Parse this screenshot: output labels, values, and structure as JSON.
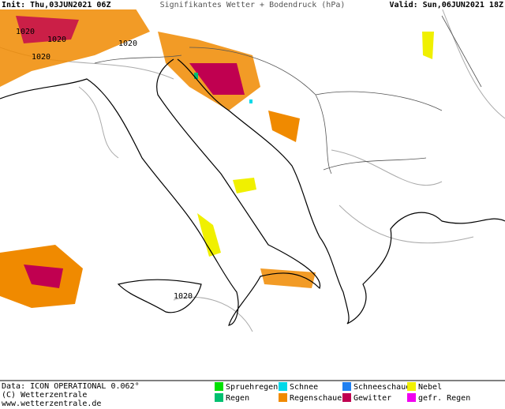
{
  "header": {
    "init": "Init: Thu,03JUN2021 06Z",
    "title": "Signifikantes Wetter +  Bodendruck (hPa)",
    "valid": "Valid: Sun,06JUN2021 18Z"
  },
  "isobar_labels": [
    "1020",
    "1020",
    "1020",
    "1020",
    "1020"
  ],
  "footer": {
    "lines": [
      "Data: ICON OPERATIONAL 0.062°",
      "(C) Wetterzentrale",
      "www.wetterzentrale.de"
    ]
  },
  "legend": [
    {
      "label": "Spruehregen",
      "color": "#00e000"
    },
    {
      "label": "Regen",
      "color": "#00c070"
    },
    {
      "label": "Schnee",
      "color": "#00d8e8"
    },
    {
      "label": "Regenschauer",
      "color": "#f08a00"
    },
    {
      "label": "Schneeschauer",
      "color": "#2080f0"
    },
    {
      "label": "Gewitter",
      "color": "#c00050"
    },
    {
      "label": "Nebel",
      "color": "#f0f000"
    },
    {
      "label": "gefr. Regen",
      "color": "#f000f0"
    }
  ]
}
